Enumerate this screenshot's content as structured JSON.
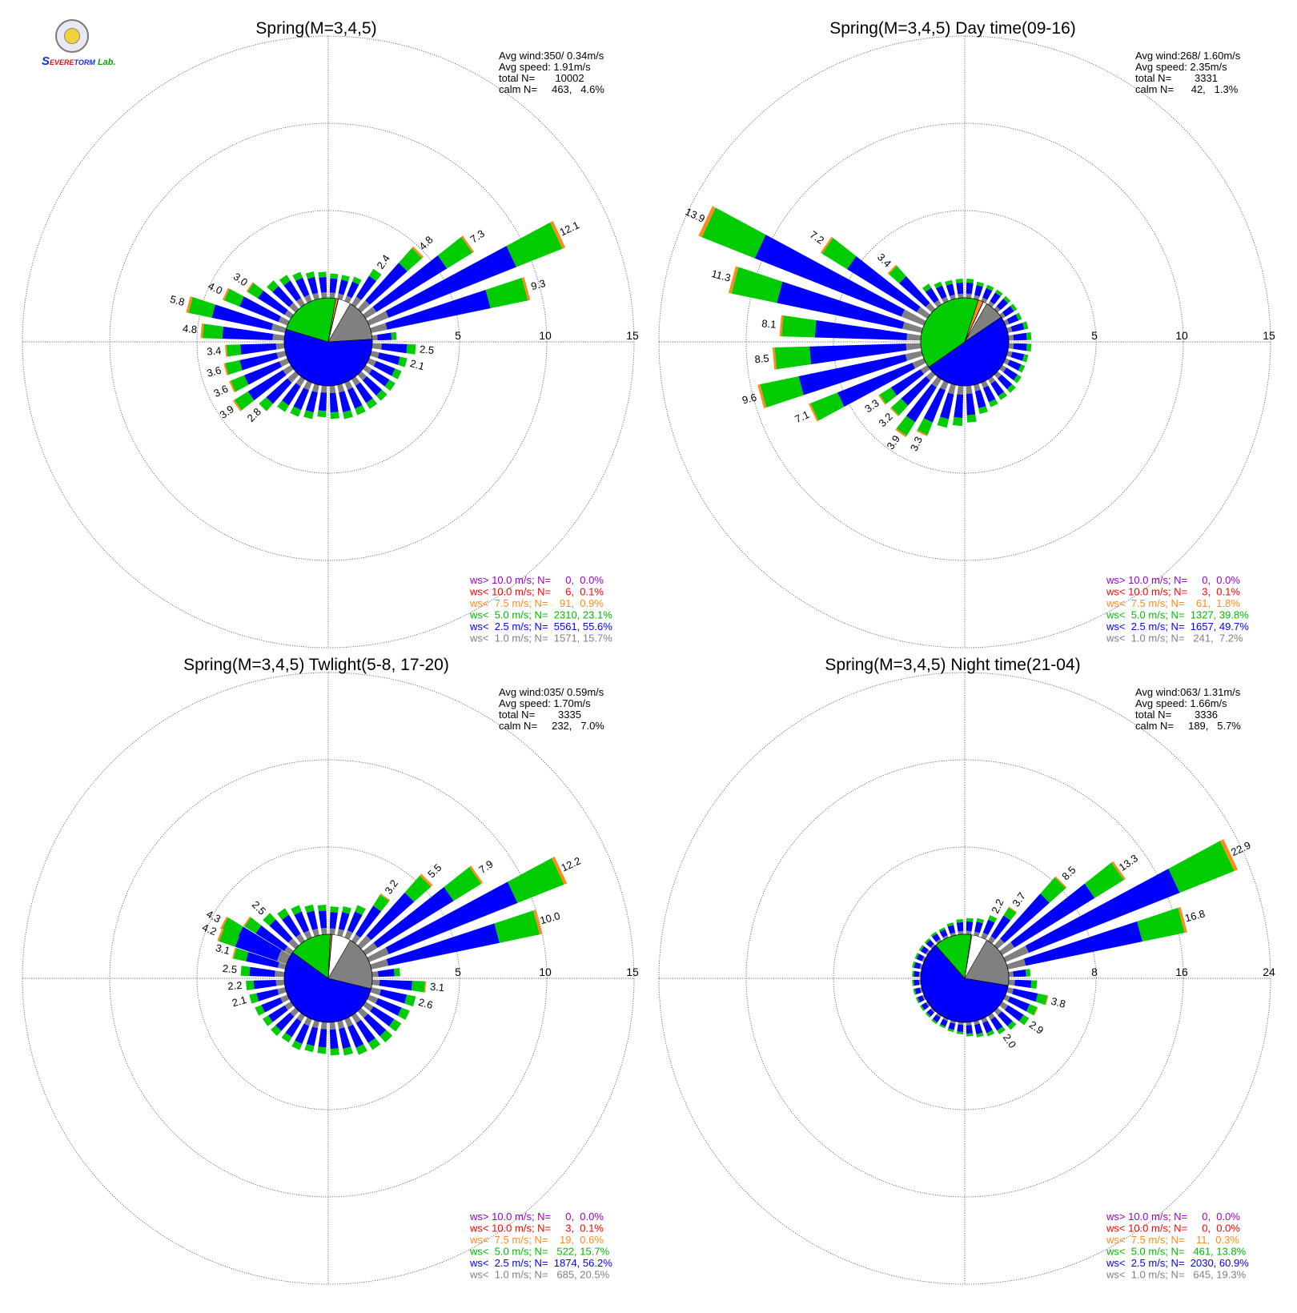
{
  "logo": {
    "text_s": "S",
    "text_evere": "EVERE",
    "text_torm": "TORM",
    "text_lab": "Lab."
  },
  "colors": {
    "calm": "#808080",
    "ws1": "#808080",
    "ws2": "#0000ff",
    "ws3": "#00cc00",
    "ws4": "#ff8c1a",
    "ws5": "#ff0000",
    "ws6": "#9900cc",
    "grid": "#666666"
  },
  "chart_data": [
    {
      "type": "windrose",
      "title": "Spring(M=3,4,5)",
      "rmax": 15,
      "ring_labels": [
        "5",
        "10",
        "15"
      ],
      "info": [
        "Avg wind:350/ 0.34m/s",
        "Avg speed: 1.91m/s",
        "total N=       10002",
        "calm N=     463,   4.6%"
      ],
      "legend": [
        {
          "text": "ws> 10.0 m/s; N=     0,  0.0%",
          "color": "#9900cc"
        },
        {
          "text": "ws< 10.0 m/s; N=     6,  0.1%",
          "color": "#ff0000"
        },
        {
          "text": "ws<  7.5 m/s; N=    91,  0.9%",
          "color": "#ff8c1a"
        },
        {
          "text": "ws<  5.0 m/s; N=  2310, 23.1%",
          "color": "#00bb00"
        },
        {
          "text": "ws<  2.5 m/s; N=  5561, 55.6%",
          "color": "#0000ff"
        },
        {
          "text": "ws<  1.0 m/s; N=  1571, 15.7%",
          "color": "#808080"
        }
      ],
      "pie": [
        15.7,
        55.6,
        23.1,
        0.9,
        0.1,
        0.0
      ],
      "bars": [
        {
          "dir": 65,
          "total": 12.1,
          "label": "12.1"
        },
        {
          "dir": 75,
          "total": 9.3,
          "label": "9.3"
        },
        {
          "dir": 55,
          "total": 7.3,
          "label": "7.3"
        },
        {
          "dir": 45,
          "total": 4.8,
          "label": "4.8"
        },
        {
          "dir": 35,
          "total": 2.4,
          "label": "2.4"
        },
        {
          "dir": 25,
          "total": 1.5
        },
        {
          "dir": 15,
          "total": 1.4
        },
        {
          "dir": 5,
          "total": 1.4
        },
        {
          "dir": 355,
          "total": 1.5
        },
        {
          "dir": 345,
          "total": 1.6
        },
        {
          "dir": 335,
          "total": 1.8
        },
        {
          "dir": 325,
          "total": 2.0
        },
        {
          "dir": 315,
          "total": 2.2
        },
        {
          "dir": 305,
          "total": 3.0,
          "label": "3.0"
        },
        {
          "dir": 295,
          "total": 4.0,
          "label": "4.0"
        },
        {
          "dir": 285,
          "total": 5.8,
          "label": "5.8"
        },
        {
          "dir": 275,
          "total": 4.8,
          "label": "4.8"
        },
        {
          "dir": 265,
          "total": 3.4,
          "label": "3.4"
        },
        {
          "dir": 255,
          "total": 3.6,
          "label": "3.6"
        },
        {
          "dir": 245,
          "total": 3.6,
          "label": "3.6"
        },
        {
          "dir": 235,
          "total": 3.9,
          "label": "3.9"
        },
        {
          "dir": 225,
          "total": 2.8,
          "label": "2.8"
        },
        {
          "dir": 215,
          "total": 2.2
        },
        {
          "dir": 205,
          "total": 2.1
        },
        {
          "dir": 195,
          "total": 2.0
        },
        {
          "dir": 185,
          "total": 1.8
        },
        {
          "dir": 175,
          "total": 1.9
        },
        {
          "dir": 165,
          "total": 2.0
        },
        {
          "dir": 155,
          "total": 2.0
        },
        {
          "dir": 145,
          "total": 2.0
        },
        {
          "dir": 135,
          "total": 2.0
        },
        {
          "dir": 125,
          "total": 2.0
        },
        {
          "dir": 115,
          "total": 2.0
        },
        {
          "dir": 105,
          "total": 2.1,
          "label": "2.1"
        },
        {
          "dir": 95,
          "total": 2.5,
          "label": "2.5"
        },
        {
          "dir": 85,
          "total": 1.4
        }
      ]
    },
    {
      "type": "windrose",
      "title": "Spring(M=3,4,5) Day time(09-16)",
      "rmax": 15,
      "ring_labels": [
        "5",
        "10",
        "15"
      ],
      "info": [
        "Avg wind:268/ 1.60m/s",
        "Avg speed: 2.35m/s",
        "total N=        3331",
        "calm N=      42,   1.3%"
      ],
      "legend": [
        {
          "text": "ws> 10.0 m/s; N=     0,  0.0%",
          "color": "#9900cc"
        },
        {
          "text": "ws< 10.0 m/s; N=     3,  0.1%",
          "color": "#ff0000"
        },
        {
          "text": "ws<  7.5 m/s; N=    61,  1.8%",
          "color": "#ff8c1a"
        },
        {
          "text": "ws<  5.0 m/s; N=  1327, 39.8%",
          "color": "#00bb00"
        },
        {
          "text": "ws<  2.5 m/s; N=  1657, 49.7%",
          "color": "#0000ff"
        },
        {
          "text": "ws<  1.0 m/s; N=   241,  7.2%",
          "color": "#808080"
        }
      ],
      "pie": [
        7.2,
        49.7,
        39.8,
        1.8,
        0.1,
        0.0
      ],
      "bars": [
        {
          "dir": 295,
          "total": 13.9,
          "label": "13.9"
        },
        {
          "dir": 305,
          "total": 7.2,
          "label": "7.2"
        },
        {
          "dir": 315,
          "total": 3.4,
          "label": "3.4"
        },
        {
          "dir": 285,
          "total": 11.3,
          "label": "11.3"
        },
        {
          "dir": 275,
          "total": 8.1,
          "label": "8.1"
        },
        {
          "dir": 265,
          "total": 8.5,
          "label": "8.5"
        },
        {
          "dir": 255,
          "total": 9.6,
          "label": "9.6"
        },
        {
          "dir": 245,
          "total": 7.1,
          "label": "7.1"
        },
        {
          "dir": 235,
          "total": 3.3,
          "label": "3.3"
        },
        {
          "dir": 225,
          "total": 3.2,
          "label": "3.2"
        },
        {
          "dir": 215,
          "total": 3.9,
          "label": "3.9"
        },
        {
          "dir": 205,
          "total": 3.3,
          "label": "3.3"
        },
        {
          "dir": 195,
          "total": 2.5
        },
        {
          "dir": 185,
          "total": 2.3
        },
        {
          "dir": 175,
          "total": 2.1
        },
        {
          "dir": 165,
          "total": 1.7
        },
        {
          "dir": 155,
          "total": 1.5
        },
        {
          "dir": 145,
          "total": 1.4
        },
        {
          "dir": 135,
          "total": 1.4
        },
        {
          "dir": 125,
          "total": 1.3
        },
        {
          "dir": 115,
          "total": 1.2
        },
        {
          "dir": 105,
          "total": 1.2
        },
        {
          "dir": 95,
          "total": 1.3
        },
        {
          "dir": 85,
          "total": 1.3
        },
        {
          "dir": 75,
          "total": 1.2
        },
        {
          "dir": 325,
          "total": 1.4
        },
        {
          "dir": 335,
          "total": 1.2
        },
        {
          "dir": 345,
          "total": 1.1
        },
        {
          "dir": 355,
          "total": 1.1
        },
        {
          "dir": 5,
          "total": 1.1
        },
        {
          "dir": 15,
          "total": 1.0
        },
        {
          "dir": 25,
          "total": 1.0
        },
        {
          "dir": 35,
          "total": 1.0
        },
        {
          "dir": 45,
          "total": 1.0
        },
        {
          "dir": 55,
          "total": 1.0
        },
        {
          "dir": 65,
          "total": 1.0
        }
      ]
    },
    {
      "type": "windrose",
      "title": "Spring(M=3,4,5) Twlight(5-8, 17-20)",
      "rmax": 15,
      "ring_labels": [
        "5",
        "10",
        "15"
      ],
      "info": [
        "Avg wind:035/ 0.59m/s",
        "Avg speed: 1.70m/s",
        "total N=        3335",
        "calm N=     232,   7.0%"
      ],
      "legend": [
        {
          "text": "ws> 10.0 m/s; N=     0,  0.0%",
          "color": "#9900cc"
        },
        {
          "text": "ws< 10.0 m/s; N=     3,  0.1%",
          "color": "#ff0000"
        },
        {
          "text": "ws<  7.5 m/s; N=    19,  0.6%",
          "color": "#ff8c1a"
        },
        {
          "text": "ws<  5.0 m/s; N=   522, 15.7%",
          "color": "#00bb00"
        },
        {
          "text": "ws<  2.5 m/s; N=  1874, 56.2%",
          "color": "#0000ff"
        },
        {
          "text": "ws<  1.0 m/s; N=   685, 20.5%",
          "color": "#808080"
        }
      ],
      "pie": [
        20.5,
        56.2,
        15.7,
        0.6,
        0.1,
        0.0
      ],
      "bars": [
        {
          "dir": 65,
          "total": 12.2,
          "label": "12.2"
        },
        {
          "dir": 75,
          "total": 10.0,
          "label": "10.0"
        },
        {
          "dir": 55,
          "total": 7.9,
          "label": "7.9"
        },
        {
          "dir": 45,
          "total": 5.5,
          "label": "5.5"
        },
        {
          "dir": 35,
          "total": 3.2,
          "label": "3.2"
        },
        {
          "dir": 25,
          "total": 2.0
        },
        {
          "dir": 15,
          "total": 1.7
        },
        {
          "dir": 5,
          "total": 1.6
        },
        {
          "dir": 355,
          "total": 1.7
        },
        {
          "dir": 345,
          "total": 1.8
        },
        {
          "dir": 335,
          "total": 2.0
        },
        {
          "dir": 325,
          "total": 2.2
        },
        {
          "dir": 315,
          "total": 2.5,
          "label": "2.5"
        },
        {
          "dir": 305,
          "total": 3.2
        },
        {
          "dir": 298,
          "total": 4.3,
          "label": "4.3"
        },
        {
          "dir": 292,
          "total": 4.2,
          "label": "4.2"
        },
        {
          "dir": 285,
          "total": 3.1,
          "label": "3.1"
        },
        {
          "dir": 275,
          "total": 2.5,
          "label": "2.5"
        },
        {
          "dir": 265,
          "total": 2.2,
          "label": "2.2"
        },
        {
          "dir": 255,
          "total": 2.1,
          "label": "2.1"
        },
        {
          "dir": 245,
          "total": 2.0
        },
        {
          "dir": 235,
          "total": 1.9
        },
        {
          "dir": 225,
          "total": 1.9
        },
        {
          "dir": 215,
          "total": 1.8
        },
        {
          "dir": 205,
          "total": 1.9
        },
        {
          "dir": 195,
          "total": 1.8
        },
        {
          "dir": 185,
          "total": 1.8
        },
        {
          "dir": 175,
          "total": 1.9
        },
        {
          "dir": 165,
          "total": 2.0
        },
        {
          "dir": 155,
          "total": 2.2
        },
        {
          "dir": 145,
          "total": 2.3
        },
        {
          "dir": 135,
          "total": 2.4
        },
        {
          "dir": 125,
          "total": 2.4
        },
        {
          "dir": 115,
          "total": 2.5
        },
        {
          "dir": 105,
          "total": 2.6,
          "label": "2.6"
        },
        {
          "dir": 95,
          "total": 3.1,
          "label": "3.1"
        },
        {
          "dir": 85,
          "total": 1.6
        }
      ]
    },
    {
      "type": "windrose",
      "title": "Spring(M=3,4,5) Night time(21-04)",
      "rmax": 24,
      "ring_labels": [
        "8",
        "16",
        "24"
      ],
      "info": [
        "Avg wind:063/ 1.31m/s",
        "Avg speed: 1.66m/s",
        "total N=        3336",
        "calm N=     189,   5.7%"
      ],
      "legend": [
        {
          "text": "ws> 10.0 m/s; N=     0,  0.0%",
          "color": "#9900cc"
        },
        {
          "text": "ws< 10.0 m/s; N=     0,  0.0%",
          "color": "#ff0000"
        },
        {
          "text": "ws<  7.5 m/s; N=    11,  0.3%",
          "color": "#ff8c1a"
        },
        {
          "text": "ws<  5.0 m/s; N=   461, 13.8%",
          "color": "#00bb00"
        },
        {
          "text": "ws<  2.5 m/s; N=  2030, 60.9%",
          "color": "#0000ff"
        },
        {
          "text": "ws<  1.0 m/s; N=   645, 19.3%",
          "color": "#808080"
        }
      ],
      "pie": [
        19.3,
        60.9,
        13.8,
        0.3,
        0.0,
        0.0
      ],
      "bars": [
        {
          "dir": 65,
          "total": 22.9,
          "label": "22.9"
        },
        {
          "dir": 75,
          "total": 16.8,
          "label": "16.8"
        },
        {
          "dir": 55,
          "total": 13.3,
          "label": "13.3"
        },
        {
          "dir": 45,
          "total": 8.5,
          "label": "8.5"
        },
        {
          "dir": 35,
          "total": 3.7,
          "label": "3.7"
        },
        {
          "dir": 25,
          "total": 2.2,
          "label": "2.2"
        },
        {
          "dir": 15,
          "total": 1.6
        },
        {
          "dir": 5,
          "total": 1.5
        },
        {
          "dir": 355,
          "total": 1.4
        },
        {
          "dir": 345,
          "total": 1.2
        },
        {
          "dir": 335,
          "total": 1.0
        },
        {
          "dir": 325,
          "total": 1.0
        },
        {
          "dir": 315,
          "total": 0.9
        },
        {
          "dir": 305,
          "total": 0.9
        },
        {
          "dir": 295,
          "total": 0.9
        },
        {
          "dir": 285,
          "total": 0.9
        },
        {
          "dir": 275,
          "total": 0.8
        },
        {
          "dir": 265,
          "total": 0.8
        },
        {
          "dir": 255,
          "total": 0.8
        },
        {
          "dir": 245,
          "total": 0.8
        },
        {
          "dir": 235,
          "total": 0.8
        },
        {
          "dir": 225,
          "total": 0.8
        },
        {
          "dir": 215,
          "total": 0.9
        },
        {
          "dir": 205,
          "total": 0.9
        },
        {
          "dir": 195,
          "total": 1.0
        },
        {
          "dir": 185,
          "total": 1.1
        },
        {
          "dir": 175,
          "total": 1.3
        },
        {
          "dir": 165,
          "total": 1.5
        },
        {
          "dir": 155,
          "total": 1.7
        },
        {
          "dir": 145,
          "total": 2.0,
          "label": "2.0"
        },
        {
          "dir": 135,
          "total": 2.3
        },
        {
          "dir": 125,
          "total": 2.9,
          "label": "2.9"
        },
        {
          "dir": 115,
          "total": 3.2
        },
        {
          "dir": 105,
          "total": 3.8,
          "label": "3.8"
        },
        {
          "dir": 95,
          "total": 2.6
        },
        {
          "dir": 85,
          "total": 2.0
        }
      ]
    }
  ]
}
